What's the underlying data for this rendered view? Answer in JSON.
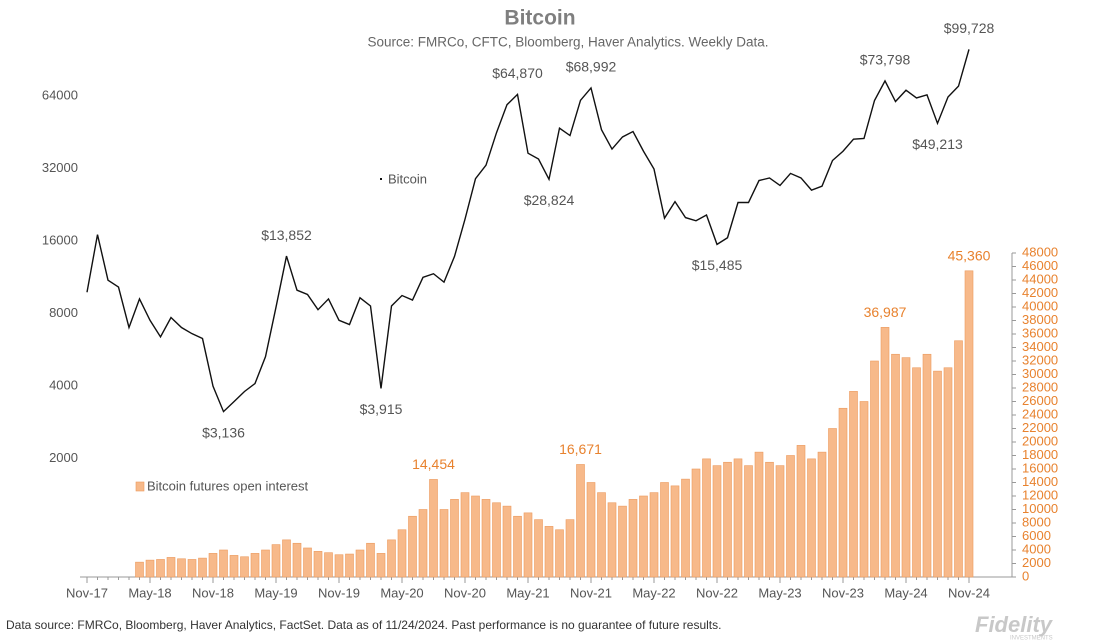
{
  "chart_data": {
    "type": "combo",
    "title": "Bitcoin",
    "subtitle": "Source: FMRCo, CFTC, Bloomberg, Haver Analytics. Weekly Data.",
    "categories": [
      "Nov-17",
      null,
      null,
      null,
      null,
      null,
      "May-18",
      null,
      null,
      null,
      null,
      null,
      "Nov-18",
      null,
      null,
      null,
      null,
      null,
      "May-19",
      null,
      null,
      null,
      null,
      null,
      "Nov-19",
      null,
      null,
      null,
      null,
      null,
      "May-20",
      null,
      null,
      null,
      null,
      null,
      "Nov-20",
      null,
      null,
      null,
      null,
      null,
      "May-21",
      null,
      null,
      null,
      null,
      null,
      "Nov-21",
      null,
      null,
      null,
      null,
      null,
      "May-22",
      null,
      null,
      null,
      null,
      null,
      "Nov-22",
      null,
      null,
      null,
      null,
      null,
      "May-23",
      null,
      null,
      null,
      null,
      null,
      "Nov-23",
      null,
      null,
      null,
      null,
      null,
      "May-24",
      null,
      null,
      null,
      null,
      null,
      "Nov-24"
    ],
    "yscale": "log",
    "ylim": [
      646,
      120000
    ],
    "yticks": [
      2000,
      4000,
      8000,
      16000,
      32000,
      64000
    ],
    "y2lim": [
      0,
      48000
    ],
    "y2ticks": [
      0,
      2000,
      4000,
      6000,
      8000,
      10000,
      12000,
      14000,
      16000,
      18000,
      20000,
      22000,
      24000,
      26000,
      28000,
      30000,
      32000,
      34000,
      36000,
      38000,
      40000,
      42000,
      44000,
      46000,
      48000
    ],
    "grid": false,
    "series": [
      {
        "name": "Bitcoin",
        "type": "line",
        "color": "#111111",
        "values": [
          9800,
          17000,
          11000,
          10300,
          7000,
          9200,
          7500,
          6400,
          7700,
          7000,
          6600,
          6300,
          4000,
          3136,
          3450,
          3800,
          4100,
          5300,
          8500,
          13852,
          10000,
          9600,
          8300,
          9200,
          7500,
          7200,
          9300,
          8600,
          3915,
          8600,
          9500,
          9100,
          11300,
          11700,
          10800,
          13800,
          19700,
          29000,
          33000,
          45000,
          58800,
          64870,
          37000,
          35000,
          28824,
          47000,
          43800,
          61300,
          68992,
          46300,
          38500,
          43200,
          45500,
          37700,
          31800,
          19900,
          23300,
          20000,
          19400,
          20500,
          15485,
          16500,
          23100,
          23100,
          28500,
          29200,
          27200,
          30500,
          29200,
          26000,
          27000,
          34500,
          37700,
          42300,
          42600,
          61200,
          73798,
          60600,
          67500,
          62700,
          64600,
          49213,
          63300,
          70200,
          99728
        ],
        "value_labels": [
          null,
          null,
          null,
          null,
          null,
          null,
          null,
          null,
          null,
          null,
          null,
          null,
          null,
          "$3,136",
          null,
          null,
          null,
          null,
          null,
          "$13,852",
          null,
          null,
          null,
          null,
          null,
          null,
          null,
          null,
          "$3,915",
          null,
          null,
          null,
          null,
          null,
          null,
          null,
          null,
          null,
          null,
          null,
          null,
          "$64,870",
          null,
          null,
          "$28,824",
          null,
          null,
          null,
          "$68,992",
          null,
          null,
          null,
          null,
          null,
          null,
          null,
          null,
          null,
          null,
          null,
          "$15,485",
          null,
          null,
          null,
          null,
          null,
          null,
          null,
          null,
          null,
          null,
          null,
          null,
          null,
          null,
          null,
          "$73,798",
          null,
          null,
          null,
          null,
          "$49,213",
          null,
          null,
          "$99,728"
        ]
      },
      {
        "name": "Bitcoin futures open interest",
        "type": "bar",
        "axis": "y2",
        "color": "#f7b98a",
        "values": [
          null,
          null,
          null,
          null,
          null,
          2200,
          2500,
          2600,
          2900,
          2700,
          2600,
          2800,
          3500,
          4000,
          3200,
          3000,
          3500,
          4000,
          4800,
          5500,
          5000,
          4300,
          3800,
          3600,
          3300,
          3400,
          4000,
          5000,
          3500,
          5500,
          7000,
          9000,
          10000,
          14454,
          10000,
          11500,
          12500,
          12000,
          11500,
          11000,
          10500,
          9000,
          9500,
          8500,
          7500,
          7000,
          8500,
          16671,
          14000,
          12500,
          11000,
          10500,
          11500,
          12000,
          12500,
          14000,
          13500,
          14500,
          16000,
          17500,
          16500,
          17000,
          17500,
          16500,
          18500,
          17000,
          16500,
          18000,
          19500,
          17500,
          18500,
          22000,
          25000,
          27500,
          26000,
          32000,
          36987,
          33000,
          32500,
          31000,
          33000,
          30500,
          31000,
          35000,
          45360
        ],
        "value_labels": [
          null,
          null,
          null,
          null,
          null,
          null,
          null,
          null,
          null,
          null,
          null,
          null,
          null,
          null,
          null,
          null,
          null,
          null,
          null,
          null,
          null,
          null,
          null,
          null,
          null,
          null,
          null,
          null,
          null,
          null,
          null,
          null,
          null,
          "14,454",
          null,
          null,
          null,
          null,
          null,
          null,
          null,
          null,
          null,
          null,
          null,
          null,
          null,
          "16,671",
          null,
          null,
          null,
          null,
          null,
          null,
          null,
          null,
          null,
          null,
          null,
          null,
          null,
          null,
          null,
          null,
          null,
          null,
          null,
          null,
          null,
          null,
          null,
          null,
          null,
          null,
          null,
          null,
          "36,987",
          null,
          null,
          null,
          null,
          null,
          null,
          null,
          "45,360"
        ]
      }
    ]
  },
  "footer": {
    "note": "Data source: FMRCo, Bloomberg, Haver Analytics, FactSet. Data as of 11/24/2024. Past performance is no guarantee of future results.",
    "logo": "Fidelity",
    "logo_sub": "INVESTMENTS"
  }
}
